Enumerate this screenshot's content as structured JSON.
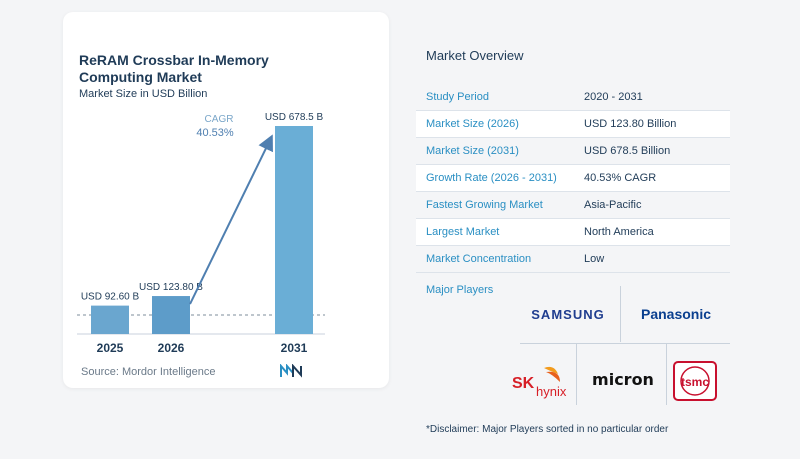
{
  "chart_data": {
    "type": "bar",
    "title": "ReRAM Crossbar In-Memory Computing Market",
    "subtitle": "Market Size in USD Billion",
    "categories": [
      "2025",
      "2026",
      "2031"
    ],
    "values": [
      92.6,
      123.8,
      678.5
    ],
    "data_labels": [
      "USD 92.60 B",
      "USD 123.80 B",
      "USD 678.5 B"
    ],
    "cagr_label": "CAGR",
    "cagr_value": "40.53%",
    "bar_colors": [
      "#6aa6cf",
      "#5d9cc9",
      "#6aaed6"
    ],
    "accent": "#4f7fb0"
  },
  "source": "Source:  Mordor Intelligence",
  "overview": {
    "title": "Market Overview",
    "rows": [
      {
        "label": "Study Period",
        "value": "2020 - 2031"
      },
      {
        "label": "Market Size (2026)",
        "value": "USD 123.80 Billion"
      },
      {
        "label": "Market Size (2031)",
        "value": "USD 678.5 Billion"
      },
      {
        "label": "Growth Rate (2026 - 2031)",
        "value": "40.53% CAGR"
      },
      {
        "label": "Fastest Growing Market",
        "value": "Asia-Pacific"
      },
      {
        "label": "Largest Market",
        "value": "North America"
      },
      {
        "label": "Market Concentration",
        "value": "Low"
      }
    ]
  },
  "players": {
    "title": "Major Players",
    "logos": {
      "samsung": "SAMSUNG",
      "panasonic": "Panasonic",
      "sk": "SK",
      "hynix": "hynix",
      "micron": "micron",
      "tsmc": "tsmc"
    }
  },
  "disclaimer": "*Disclaimer: Major Players sorted in no particular order"
}
